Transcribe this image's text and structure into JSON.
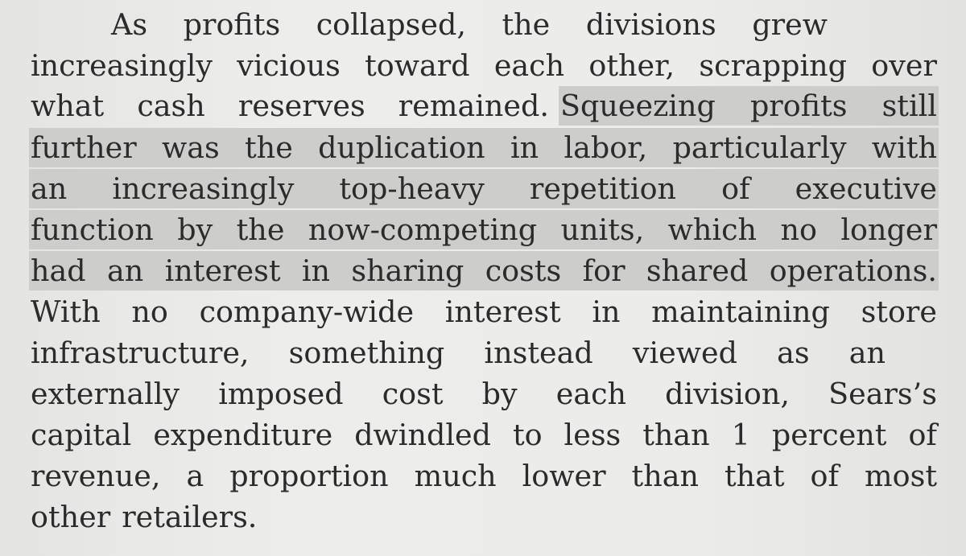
{
  "document": {
    "lines": [
      {
        "text": "As profits collapsed, the divisions grew"
      },
      {
        "text": "increasingly vicious toward each other, scrapping over"
      },
      {
        "plain": "what cash reserves remained.",
        "highlighted": "Squeezing profits still"
      },
      {
        "text": "further was the duplication in labor, particularly with"
      },
      {
        "text": "an increasingly top-heavy repetition of executive"
      },
      {
        "text": "function by the now-competing units, which no longer"
      },
      {
        "text": "had an interest in sharing costs for shared operations."
      },
      {
        "text": "With no company-wide interest in maintaining store"
      },
      {
        "text": "infrastructure, something instead viewed as an"
      },
      {
        "text": "externally imposed cost by each division, Sears’s"
      },
      {
        "text": "capital expenditure dwindled to less than 1 percent of"
      },
      {
        "text": "revenue, a proportion much lower than that of most"
      },
      {
        "text": "other retailers."
      }
    ]
  }
}
